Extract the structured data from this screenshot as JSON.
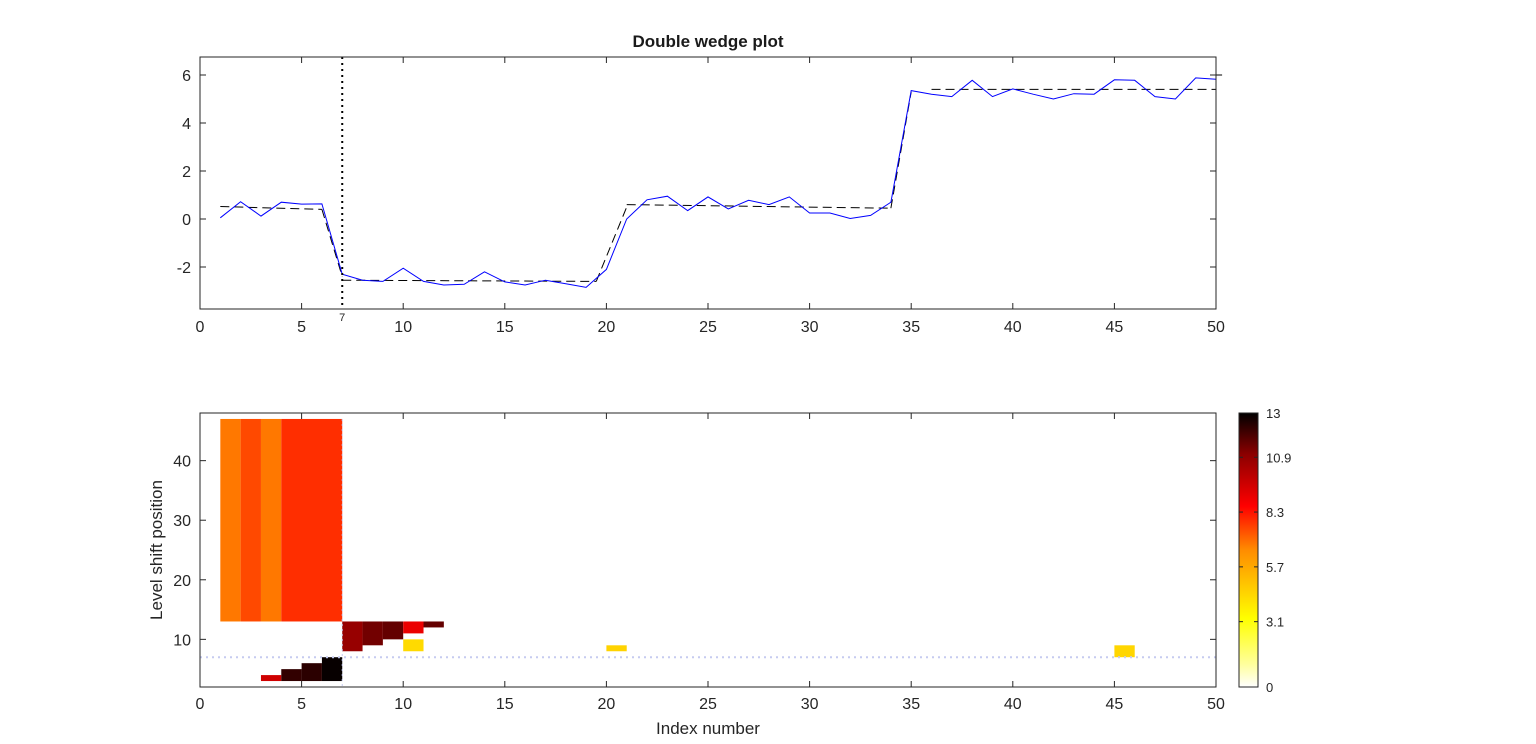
{
  "chart_data": [
    {
      "type": "line",
      "title": "Double wedge plot",
      "xlabel": "",
      "ylabel": "",
      "xlim": [
        0,
        50
      ],
      "ylim": [
        -3.75,
        6.75
      ],
      "xticks": [
        0,
        5,
        10,
        15,
        20,
        25,
        30,
        35,
        40,
        45,
        50
      ],
      "yticks": [
        -2,
        0,
        2,
        4,
        6
      ],
      "grid": false,
      "vline": {
        "x": 7,
        "label": "7",
        "style": "dotted"
      },
      "series": [
        {
          "style": "solid",
          "color": "#0000ff",
          "x": [
            1,
            2,
            3,
            4,
            5,
            6,
            7,
            8,
            9,
            10,
            11,
            12,
            13,
            14,
            15,
            16,
            17,
            18,
            19,
            20,
            21,
            22,
            23,
            24,
            25,
            26,
            27,
            28,
            29,
            30,
            31,
            32,
            33,
            34,
            35,
            36,
            37,
            38,
            39,
            40,
            41,
            42,
            43,
            44,
            45,
            46,
            47,
            48,
            49,
            50
          ],
          "y": [
            0.05,
            0.72,
            0.12,
            0.7,
            0.62,
            0.63,
            -2.3,
            -2.55,
            -2.6,
            -2.05,
            -2.6,
            -2.75,
            -2.72,
            -2.2,
            -2.62,
            -2.75,
            -2.55,
            -2.7,
            -2.85,
            -2.1,
            0.0,
            0.8,
            0.95,
            0.35,
            0.92,
            0.42,
            0.78,
            0.6,
            0.92,
            0.25,
            0.25,
            0.02,
            0.15,
            0.7,
            5.35,
            5.2,
            5.1,
            5.78,
            5.1,
            5.42,
            5.2,
            5.0,
            5.22,
            5.2,
            5.8,
            5.78,
            5.1,
            5.0,
            5.88,
            5.82
          ]
        },
        {
          "style": "dashed",
          "color": "#000000",
          "segments": [
            {
              "x": [
                1,
                6
              ],
              "y": [
                0.52,
                0.4
              ]
            },
            {
              "x": [
                6,
                7
              ],
              "y": [
                0.4,
                -2.4
              ]
            },
            {
              "x": [
                7,
                19.5
              ],
              "y": [
                -2.55,
                -2.6
              ]
            },
            {
              "x": [
                19.5,
                21
              ],
              "y": [
                -2.6,
                0.5
              ]
            },
            {
              "x": [
                21,
                34
              ],
              "y": [
                0.6,
                0.45
              ]
            },
            {
              "x": [
                34,
                35
              ],
              "y": [
                0.45,
                5.3
              ]
            },
            {
              "x": [
                36,
                50
              ],
              "y": [
                5.4,
                5.4
              ]
            },
            {
              "x": [
                50,
                50.3
              ],
              "y": [
                6.0,
                6.0
              ]
            }
          ]
        }
      ]
    },
    {
      "type": "heatmap",
      "title": "",
      "xlabel": "Index number",
      "ylabel": "Level shift position",
      "xlim": [
        0,
        50
      ],
      "ylim": [
        2,
        48
      ],
      "xticks": [
        0,
        5,
        10,
        15,
        20,
        25,
        30,
        35,
        40,
        45,
        50
      ],
      "yticks": [
        10,
        20,
        30,
        40
      ],
      "hline": {
        "y": 7,
        "style": "dotted",
        "color": "#c6cbf0"
      },
      "colorbar": {
        "min": 0,
        "max": 13,
        "ticks": [
          0,
          3.1,
          5.7,
          8.3,
          10.9,
          13
        ],
        "colormap": "hot-reversed"
      },
      "cells": [
        {
          "x0": 1,
          "x1": 2,
          "y0": 13,
          "y1": 47,
          "v": 6.8
        },
        {
          "x0": 2,
          "x1": 3,
          "y0": 13,
          "y1": 47,
          "v": 7.5
        },
        {
          "x0": 3,
          "x1": 4,
          "y0": 13,
          "y1": 47,
          "v": 6.8
        },
        {
          "x0": 4,
          "x1": 7,
          "y0": 13,
          "y1": 47,
          "v": 7.9
        },
        {
          "x0": 7,
          "x1": 8,
          "y0": 8,
          "y1": 13,
          "v": 10.8
        },
        {
          "x0": 8,
          "x1": 9,
          "y0": 9,
          "y1": 13,
          "v": 11.4
        },
        {
          "x0": 9,
          "x1": 10,
          "y0": 10,
          "y1": 13,
          "v": 11.6
        },
        {
          "x0": 10,
          "x1": 11,
          "y0": 11,
          "y1": 13,
          "v": 9.0
        },
        {
          "x0": 11,
          "x1": 12,
          "y0": 12,
          "y1": 13,
          "v": 11.6
        },
        {
          "x0": 10,
          "x1": 11,
          "y0": 8,
          "y1": 10,
          "v": 4.3
        },
        {
          "x0": 20,
          "x1": 21,
          "y0": 8,
          "y1": 9,
          "v": 4.5
        },
        {
          "x0": 45,
          "x1": 46,
          "y0": 7,
          "y1": 9,
          "v": 4.4
        },
        {
          "x0": 3,
          "x1": 4,
          "y0": 3,
          "y1": 4,
          "v": 9.6
        },
        {
          "x0": 4,
          "x1": 5,
          "y0": 3,
          "y1": 5,
          "v": 12.3
        },
        {
          "x0": 5,
          "x1": 6,
          "y0": 3,
          "y1": 6,
          "v": 12.4
        },
        {
          "x0": 6,
          "x1": 7,
          "y0": 3,
          "y1": 7,
          "v": 12.9
        }
      ]
    }
  ]
}
